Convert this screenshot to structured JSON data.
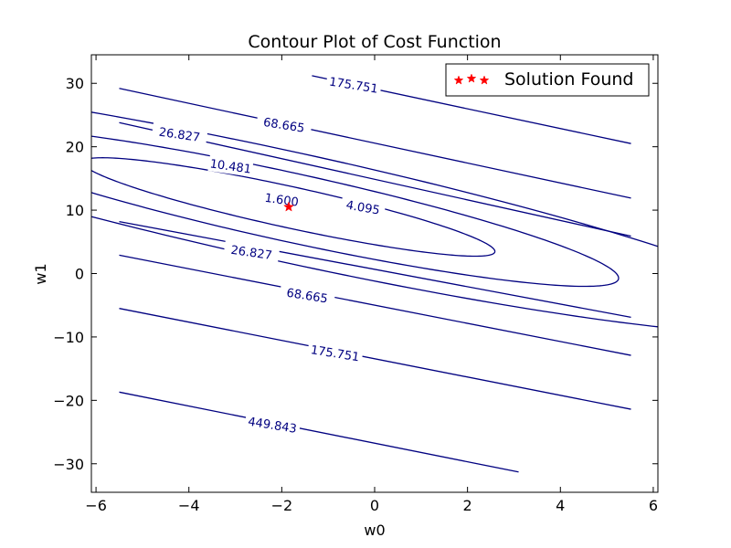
{
  "chart_data": {
    "type": "contour",
    "title": "Contour Plot of Cost Function",
    "xlabel": "w0",
    "ylabel": "w1",
    "xlim": [
      -6.1,
      6.1
    ],
    "ylim": [
      -34.5,
      34.5
    ],
    "xticks": [
      {
        "value": -6,
        "label": "−6"
      },
      {
        "value": -4,
        "label": "−4"
      },
      {
        "value": -2,
        "label": "−2"
      },
      {
        "value": 0,
        "label": "0"
      },
      {
        "value": 2,
        "label": "2"
      },
      {
        "value": 4,
        "label": "4"
      },
      {
        "value": 6,
        "label": "6"
      }
    ],
    "yticks": [
      {
        "value": 30,
        "label": "30"
      },
      {
        "value": 20,
        "label": "20"
      },
      {
        "value": 10,
        "label": "10"
      },
      {
        "value": 0,
        "label": "0"
      },
      {
        "value": -10,
        "label": "−10"
      },
      {
        "value": -20,
        "label": "−20"
      },
      {
        "value": -30,
        "label": "−30"
      }
    ],
    "grid": false,
    "line_color": "#000080",
    "marker_color": "#ff0000",
    "legend": {
      "placement": "top-right",
      "entries": [
        {
          "label": "Solution Found",
          "marker": "star",
          "color": "#ff0000"
        }
      ]
    },
    "solution_point": {
      "x": -1.85,
      "y": 10.5
    },
    "contours": [
      {
        "level": "1.600",
        "shape": "ellipse",
        "cx": -1.85,
        "cy": 10.5,
        "semi_u": 1.2,
        "semi_v": 0.09,
        "label_at": [
          -2.0,
          11.7
        ],
        "label_angle": 8
      },
      {
        "level": "4.095",
        "shape": "ellipse",
        "cx": -1.85,
        "cy": 10.5,
        "semi_u": 1.92,
        "semi_v": 0.15,
        "label_at": [
          -0.25,
          10.5
        ],
        "label_angle": 10
      },
      {
        "level": "10.481",
        "shape": "ellipse",
        "cx": -1.85,
        "cy": 10.5,
        "semi_u": 3.07,
        "semi_v": 0.24,
        "label_at": [
          -3.1,
          17.0
        ],
        "label_angle": 8
      },
      {
        "level": "26.827",
        "shape": "line",
        "line_color": "#000080",
        "segments": [
          [
            [
              -5.5,
              23.8
            ],
            [
              5.52,
              5.9
            ]
          ],
          [
            [
              -5.5,
              8.2
            ],
            [
              5.52,
              -6.9
            ]
          ]
        ],
        "labels": [
          {
            "text": "26.827",
            "at": [
              -4.2,
              22.0
            ],
            "angle": 8
          },
          {
            "text": "26.827",
            "at": [
              -2.65,
              3.4
            ],
            "angle": 8
          }
        ]
      },
      {
        "level": "68.665",
        "shape": "line",
        "segments": [
          [
            [
              -5.5,
              29.2
            ],
            [
              5.52,
              11.9
            ]
          ],
          [
            [
              -5.5,
              2.9
            ],
            [
              5.52,
              -12.9
            ]
          ]
        ],
        "labels": [
          {
            "text": "68.665",
            "at": [
              -1.95,
              23.5
            ],
            "angle": 9
          },
          {
            "text": "68.665",
            "at": [
              -1.45,
              -3.4
            ],
            "angle": 9
          }
        ]
      },
      {
        "level": "175.751",
        "shape": "line",
        "segments": [
          [
            [
              -1.35,
              31.2
            ],
            [
              5.52,
              20.5
            ]
          ],
          [
            [
              -5.5,
              -5.5
            ],
            [
              5.52,
              -21.4
            ]
          ]
        ],
        "labels": [
          {
            "text": "175.751",
            "at": [
              -0.45,
              29.8
            ],
            "angle": 9
          },
          {
            "text": "175.751",
            "at": [
              -0.85,
              -12.5
            ],
            "angle": 9
          }
        ]
      },
      {
        "level": "449.843",
        "shape": "line",
        "segments": [
          [
            [
              -5.5,
              -18.7
            ],
            [
              3.1,
              -31.3
            ]
          ]
        ],
        "labels": [
          {
            "text": "449.843",
            "at": [
              -2.2,
              -23.8
            ],
            "angle": 9
          }
        ]
      }
    ]
  }
}
